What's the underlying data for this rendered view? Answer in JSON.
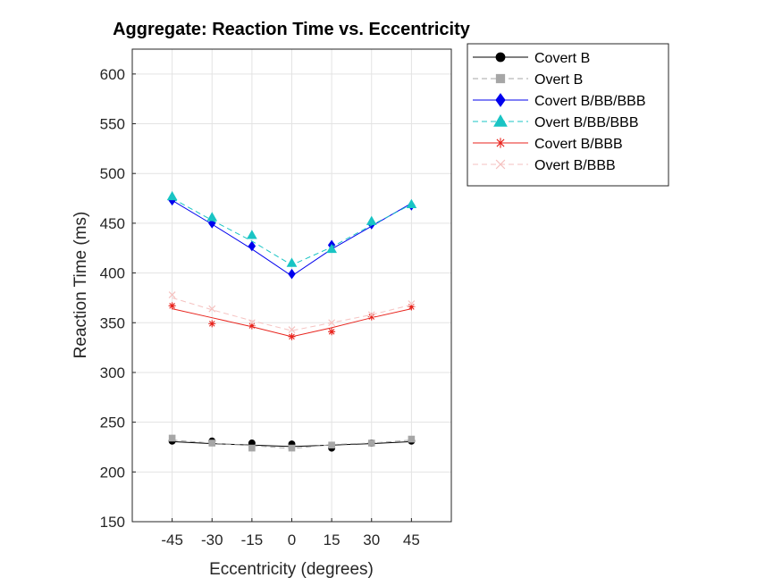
{
  "chart_data": {
    "type": "line",
    "title": "Aggregate: Reaction Time vs. Eccentricity",
    "xlabel": "Eccentricity (degrees)",
    "ylabel": "Reaction Time (ms)",
    "x_ticks": [
      -45,
      -30,
      -15,
      0,
      15,
      30,
      45
    ],
    "y_ticks": [
      150,
      200,
      250,
      300,
      350,
      400,
      450,
      500,
      550,
      600
    ],
    "xlim": [
      -60,
      60
    ],
    "ylim": [
      150,
      625
    ],
    "grid": true,
    "legend_position": "outside-top-right",
    "x": [
      -45,
      -30,
      -15,
      0,
      15,
      30,
      45
    ],
    "series": [
      {
        "name": "Covert B",
        "color": "#000000",
        "line": "solid",
        "marker": "circle",
        "points": [
          231,
          231,
          229,
          228,
          224,
          229,
          231
        ],
        "fit": [
          230.5,
          228.5,
          227,
          225.5,
          227,
          228.5,
          230.5
        ]
      },
      {
        "name": "Overt B",
        "color": "#a6a6a6",
        "line": "dashed",
        "marker": "square",
        "points": [
          234,
          229,
          224,
          224,
          227,
          229,
          233
        ],
        "fit": [
          232,
          229,
          226.5,
          223.5,
          227.5,
          229,
          232
        ]
      },
      {
        "name": "Covert B/BB/BBB",
        "color": "#0000ee",
        "line": "solid",
        "marker": "diamond",
        "points": [
          473,
          450,
          427,
          399,
          428,
          449,
          468
        ],
        "fit": [
          473,
          449,
          424,
          397,
          424,
          447,
          470
        ]
      },
      {
        "name": "Overt B/BB/BBB",
        "color": "#19c4c4",
        "line": "dashed",
        "marker": "triangle",
        "points": [
          477,
          456,
          438,
          410,
          424,
          452,
          469
        ],
        "fit": [
          475,
          453,
          432,
          408,
          426,
          448,
          469
        ]
      },
      {
        "name": "Covert B/BBB",
        "color": "#e8231c",
        "line": "solid",
        "marker": "asterisk",
        "points": [
          367,
          349,
          347,
          336,
          341,
          356,
          366
        ],
        "fit": [
          364,
          355,
          346,
          336,
          345,
          355,
          364
        ]
      },
      {
        "name": "Overt B/BBB",
        "color": "#f5c2c0",
        "line": "dashed",
        "marker": "x",
        "points": [
          378,
          364,
          350,
          343,
          350,
          358,
          369
        ],
        "fit": [
          375,
          363,
          352,
          342,
          350,
          358,
          368
        ]
      }
    ]
  }
}
